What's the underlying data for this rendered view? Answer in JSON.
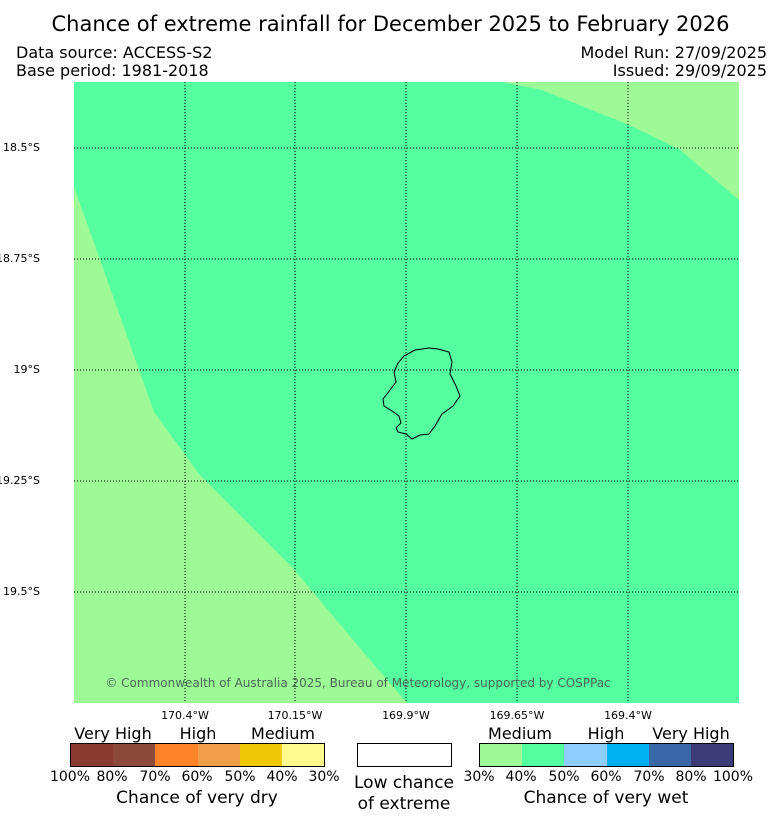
{
  "header": {
    "title": "Chance of extreme rainfall for December 2025 to February 2026",
    "data_source": "Data source: ACCESS-S2",
    "base_period": "Base period: 1981-2018",
    "model_run": "Model Run: 27/09/2025",
    "issued": "Issued: 29/09/2025"
  },
  "map": {
    "lat_labels": [
      "18.5°S",
      "18.75°S",
      "19°S",
      "19.25°S",
      "19.5°S"
    ],
    "lon_labels": [
      "170.4°W",
      "170.15°W",
      "169.9°W",
      "169.65°W",
      "169.4°W"
    ],
    "copyright": "© Commonwealth of Australia 2025, Bureau of Meteorology, supported by COSPPac",
    "colors": {
      "medium_wet": "#9efa96",
      "wet_40_50": "#55fe9e",
      "coastline": "#000000"
    }
  },
  "legend": {
    "dry": {
      "categories": [
        "Very High",
        "High",
        "Medium"
      ],
      "colors": [
        "#8b3a30",
        "#8b4a3a",
        "#fe8228",
        "#f09e48",
        "#f0c808",
        "#fefa8e"
      ],
      "ticks": [
        "100%",
        "80%",
        "70%",
        "60%",
        "50%",
        "40%",
        "30%"
      ],
      "title": "Chance of very dry"
    },
    "low": {
      "line1": "Low chance",
      "line2": "of extreme"
    },
    "wet": {
      "categories": [
        "Medium",
        "High",
        "Very High"
      ],
      "colors": [
        "#9efa96",
        "#55fe9e",
        "#8ecefe",
        "#00b0f0",
        "#3868a8",
        "#3c3c78"
      ],
      "ticks": [
        "30%",
        "40%",
        "50%",
        "60%",
        "70%",
        "80%",
        "100%"
      ],
      "title": "Chance of very wet"
    }
  }
}
